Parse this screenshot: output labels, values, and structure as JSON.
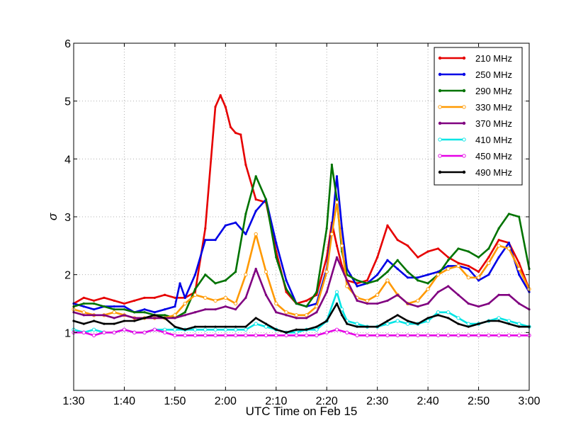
{
  "chart_data": {
    "type": "line",
    "title": "",
    "xlabel": "UTC Time on Feb 15",
    "ylabel": "σ",
    "xlim": [
      90,
      180
    ],
    "ylim": [
      0,
      6
    ],
    "x_ticks": [
      {
        "value": 90,
        "label": "1:30"
      },
      {
        "value": 100,
        "label": "1:40"
      },
      {
        "value": 110,
        "label": "1:50"
      },
      {
        "value": 120,
        "label": "2:00"
      },
      {
        "value": 130,
        "label": "2:10"
      },
      {
        "value": 140,
        "label": "2:20"
      },
      {
        "value": 150,
        "label": "2:30"
      },
      {
        "value": 160,
        "label": "2:40"
      },
      {
        "value": 170,
        "label": "2:50"
      },
      {
        "value": 180,
        "label": "3:00"
      }
    ],
    "y_ticks": [
      {
        "value": 1,
        "label": "1"
      },
      {
        "value": 2,
        "label": "2"
      },
      {
        "value": 3,
        "label": "3"
      },
      {
        "value": 4,
        "label": "4"
      },
      {
        "value": 5,
        "label": "5"
      },
      {
        "value": 6,
        "label": "6"
      }
    ],
    "grid": true,
    "legend_position": "top-right",
    "series": [
      {
        "name": "210 MHz",
        "color": "#e60000",
        "marker": "dot",
        "x": [
          90,
          92,
          94,
          96,
          98,
          100,
          102,
          104,
          106,
          108,
          110,
          112,
          114,
          116,
          118,
          119,
          120,
          121,
          122,
          123,
          124,
          126,
          128,
          130,
          132,
          134,
          136,
          138,
          140,
          141,
          142,
          143,
          144,
          146,
          148,
          150,
          152,
          154,
          156,
          158,
          160,
          162,
          164,
          166,
          168,
          170,
          172,
          174,
          176,
          178,
          180
        ],
        "y": [
          1.5,
          1.6,
          1.55,
          1.6,
          1.55,
          1.5,
          1.55,
          1.6,
          1.6,
          1.65,
          1.6,
          1.6,
          1.7,
          2.8,
          4.9,
          5.1,
          4.9,
          4.55,
          4.45,
          4.42,
          3.9,
          3.3,
          3.25,
          2.4,
          1.7,
          1.5,
          1.55,
          1.65,
          2.3,
          2.9,
          2.5,
          2.15,
          1.9,
          1.85,
          1.9,
          2.3,
          2.85,
          2.6,
          2.5,
          2.3,
          2.4,
          2.45,
          2.3,
          2.2,
          2.15,
          2.05,
          2.3,
          2.6,
          2.55,
          2.2,
          1.75
        ]
      },
      {
        "name": "250 MHz",
        "color": "#0000e6",
        "marker": "dot",
        "x": [
          90,
          92,
          94,
          96,
          98,
          100,
          102,
          104,
          106,
          108,
          110,
          111,
          112,
          114,
          116,
          118,
          120,
          122,
          124,
          126,
          128,
          130,
          132,
          134,
          136,
          138,
          140,
          141,
          142,
          143,
          144,
          146,
          148,
          150,
          152,
          154,
          156,
          158,
          160,
          162,
          164,
          166,
          168,
          170,
          172,
          174,
          176,
          178,
          180
        ],
        "y": [
          1.5,
          1.45,
          1.4,
          1.45,
          1.45,
          1.45,
          1.35,
          1.4,
          1.35,
          1.4,
          1.45,
          1.85,
          1.6,
          2.0,
          2.6,
          2.6,
          2.85,
          2.9,
          2.7,
          3.1,
          3.3,
          2.55,
          1.9,
          1.5,
          1.45,
          1.5,
          2.1,
          2.8,
          3.7,
          2.8,
          2.1,
          1.8,
          1.85,
          2.0,
          2.25,
          2.1,
          1.95,
          1.95,
          2.0,
          2.05,
          2.15,
          2.15,
          2.1,
          1.9,
          2.0,
          2.3,
          2.55,
          2.0,
          1.7
        ]
      },
      {
        "name": "290 MHz",
        "color": "#007300",
        "marker": "dot",
        "x": [
          90,
          92,
          94,
          96,
          98,
          100,
          102,
          104,
          106,
          108,
          110,
          112,
          114,
          116,
          118,
          120,
          122,
          124,
          126,
          128,
          130,
          132,
          134,
          136,
          138,
          140,
          141,
          142,
          143,
          144,
          146,
          148,
          150,
          152,
          154,
          156,
          158,
          160,
          162,
          164,
          166,
          168,
          170,
          172,
          174,
          176,
          178,
          180
        ],
        "y": [
          1.45,
          1.5,
          1.5,
          1.45,
          1.4,
          1.4,
          1.35,
          1.35,
          1.3,
          1.3,
          1.25,
          1.35,
          1.75,
          2.0,
          1.85,
          1.9,
          2.05,
          3.05,
          3.7,
          3.3,
          2.3,
          1.75,
          1.5,
          1.45,
          1.7,
          2.8,
          3.9,
          3.3,
          2.4,
          2.0,
          1.9,
          1.85,
          1.9,
          2.05,
          2.25,
          2.05,
          1.9,
          1.85,
          2.0,
          2.25,
          2.45,
          2.4,
          2.3,
          2.45,
          2.8,
          3.05,
          3.0,
          2.1
        ]
      },
      {
        "name": "330 MHz",
        "color": "#ff9900",
        "marker": "ring",
        "x": [
          90,
          92,
          94,
          96,
          98,
          100,
          102,
          104,
          106,
          108,
          110,
          112,
          114,
          116,
          118,
          120,
          122,
          124,
          126,
          128,
          130,
          132,
          134,
          136,
          138,
          140,
          141,
          142,
          143,
          144,
          146,
          148,
          150,
          152,
          154,
          156,
          158,
          160,
          162,
          164,
          166,
          168,
          170,
          172,
          174,
          176,
          178,
          180
        ],
        "y": [
          1.4,
          1.35,
          1.3,
          1.3,
          1.35,
          1.3,
          1.25,
          1.25,
          1.25,
          1.25,
          1.3,
          1.5,
          1.65,
          1.6,
          1.55,
          1.6,
          1.5,
          2.0,
          2.7,
          2.05,
          1.5,
          1.35,
          1.3,
          1.3,
          1.45,
          2.05,
          2.7,
          3.25,
          2.5,
          1.8,
          1.6,
          1.55,
          1.65,
          1.9,
          1.65,
          1.5,
          1.55,
          1.75,
          2.0,
          2.1,
          2.15,
          1.95,
          1.95,
          2.2,
          2.5,
          2.45,
          2.1,
          1.75
        ]
      },
      {
        "name": "370 MHz",
        "color": "#800080",
        "marker": "dot",
        "x": [
          90,
          92,
          94,
          96,
          98,
          100,
          102,
          104,
          106,
          108,
          110,
          112,
          114,
          116,
          118,
          120,
          122,
          124,
          126,
          128,
          130,
          132,
          134,
          136,
          138,
          140,
          142,
          144,
          146,
          148,
          150,
          152,
          154,
          156,
          158,
          160,
          162,
          164,
          166,
          168,
          170,
          172,
          174,
          176,
          178,
          180
        ],
        "y": [
          1.35,
          1.3,
          1.3,
          1.3,
          1.25,
          1.3,
          1.25,
          1.25,
          1.25,
          1.25,
          1.25,
          1.3,
          1.35,
          1.4,
          1.4,
          1.45,
          1.4,
          1.6,
          2.1,
          1.65,
          1.35,
          1.3,
          1.25,
          1.25,
          1.35,
          1.7,
          2.3,
          1.9,
          1.55,
          1.5,
          1.5,
          1.55,
          1.65,
          1.5,
          1.45,
          1.5,
          1.7,
          1.8,
          1.65,
          1.5,
          1.45,
          1.5,
          1.65,
          1.65,
          1.5,
          1.4
        ]
      },
      {
        "name": "410 MHz",
        "color": "#00e5e5",
        "marker": "ring",
        "x": [
          90,
          92,
          94,
          96,
          98,
          100,
          102,
          104,
          106,
          108,
          110,
          112,
          114,
          116,
          118,
          120,
          122,
          124,
          126,
          128,
          130,
          132,
          134,
          136,
          138,
          140,
          142,
          143,
          144,
          146,
          148,
          150,
          152,
          154,
          156,
          158,
          160,
          162,
          164,
          166,
          168,
          170,
          172,
          174,
          176,
          178,
          180
        ],
        "y": [
          1.05,
          1.0,
          1.05,
          1.0,
          1.0,
          1.05,
          1.0,
          1.0,
          1.05,
          1.05,
          1.05,
          1.05,
          1.05,
          1.05,
          1.05,
          1.05,
          1.05,
          1.05,
          1.15,
          1.1,
          1.05,
          1.0,
          1.0,
          1.05,
          1.05,
          1.2,
          1.7,
          1.4,
          1.2,
          1.15,
          1.1,
          1.1,
          1.15,
          1.2,
          1.15,
          1.15,
          1.2,
          1.35,
          1.35,
          1.25,
          1.15,
          1.15,
          1.2,
          1.25,
          1.2,
          1.15,
          1.1
        ]
      },
      {
        "name": "450 MHz",
        "color": "#e600e6",
        "marker": "ring",
        "x": [
          90,
          92,
          94,
          96,
          98,
          100,
          102,
          104,
          106,
          108,
          110,
          112,
          114,
          116,
          118,
          120,
          122,
          124,
          126,
          128,
          130,
          132,
          134,
          136,
          138,
          140,
          142,
          144,
          146,
          148,
          150,
          152,
          154,
          156,
          158,
          160,
          162,
          164,
          166,
          168,
          170,
          172,
          174,
          176,
          178,
          180
        ],
        "y": [
          1.0,
          1.0,
          0.95,
          1.0,
          1.0,
          1.05,
          1.0,
          1.0,
          1.05,
          1.0,
          0.95,
          0.95,
          0.95,
          0.95,
          0.95,
          0.95,
          0.95,
          0.95,
          0.95,
          0.95,
          0.95,
          0.95,
          0.95,
          0.95,
          0.95,
          1.0,
          1.05,
          1.0,
          0.95,
          0.95,
          0.95,
          0.95,
          0.95,
          0.95,
          0.95,
          0.95,
          0.95,
          0.95,
          0.95,
          0.95,
          0.95,
          0.95,
          0.95,
          0.95,
          0.95,
          0.95
        ]
      },
      {
        "name": "490 MHz",
        "color": "#000000",
        "marker": "dot",
        "x": [
          90,
          92,
          94,
          96,
          98,
          100,
          102,
          104,
          106,
          108,
          110,
          112,
          114,
          116,
          118,
          120,
          122,
          124,
          126,
          128,
          130,
          132,
          134,
          136,
          138,
          140,
          142,
          143,
          144,
          146,
          148,
          150,
          152,
          154,
          156,
          158,
          160,
          162,
          164,
          166,
          168,
          170,
          172,
          174,
          176,
          178,
          180
        ],
        "y": [
          1.2,
          1.15,
          1.2,
          1.15,
          1.15,
          1.2,
          1.2,
          1.25,
          1.3,
          1.25,
          1.1,
          1.05,
          1.1,
          1.1,
          1.1,
          1.1,
          1.1,
          1.1,
          1.25,
          1.15,
          1.05,
          1.0,
          1.05,
          1.05,
          1.1,
          1.2,
          1.5,
          1.3,
          1.15,
          1.1,
          1.1,
          1.1,
          1.2,
          1.3,
          1.2,
          1.15,
          1.25,
          1.3,
          1.25,
          1.15,
          1.1,
          1.15,
          1.2,
          1.2,
          1.15,
          1.1,
          1.1
        ]
      }
    ]
  }
}
